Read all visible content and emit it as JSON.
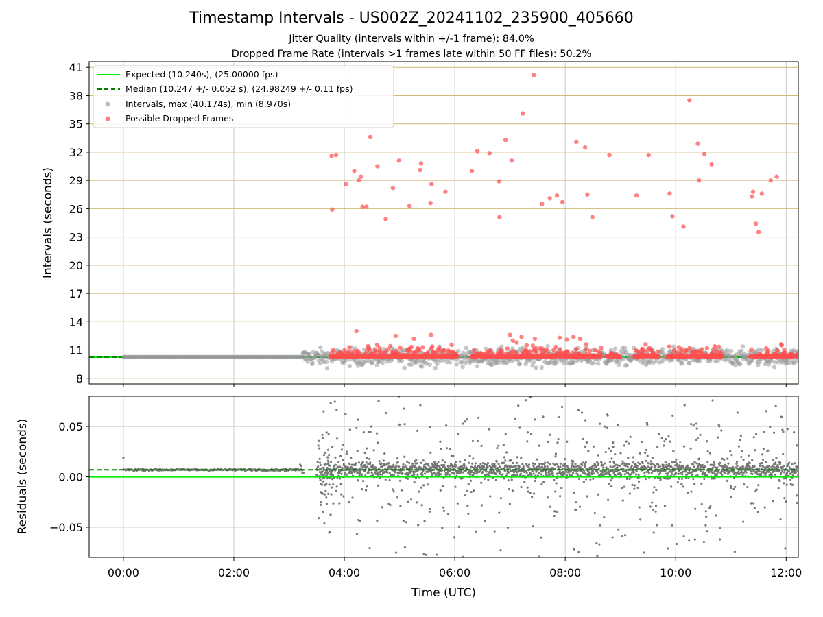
{
  "chart_data": [
    {
      "type": "scatter",
      "title": "Timestamp Intervals - US002Z_20241102_235900_405660",
      "subtitle_lines": [
        "Jitter Quality (intervals within +/-1 frame): 84.0%",
        "Dropped Frame Rate (intervals >1 frames late within 50 FF files): 50.2%"
      ],
      "xlabel": "",
      "ylabel": "Intervals (seconds)",
      "x_unit": "hours (UTC)",
      "xlim": [
        -0.62,
        12.22
      ],
      "ylim": [
        7.4,
        41.6
      ],
      "yticks": [
        8,
        11,
        14,
        17,
        20,
        23,
        26,
        29,
        32,
        35,
        38,
        41
      ],
      "grid": {
        "vertical": true,
        "horizontal": true,
        "horizontal_color": "#d4b872",
        "vertical_color": "#cccccc"
      },
      "legend_position": "top-left",
      "expected_interval": 10.24,
      "median_interval": 10.247,
      "legend": [
        {
          "label": "Expected (10.240s), (25.00000 fps)",
          "style": "solid",
          "color": "#00ee00"
        },
        {
          "label": "Median (10.247 +/- 0.052 s), (24.98249 +/- 0.11 fps)",
          "style": "dashed",
          "color": "#007f00"
        },
        {
          "label": "Intervals, max (40.174s), min (8.970s)",
          "style": "marker",
          "color": "#999999"
        },
        {
          "label": "Possible Dropped Frames",
          "style": "marker",
          "color": "#ff4d4d"
        }
      ],
      "series": [
        {
          "name": "Possible Dropped Frames",
          "color": "#ff4d4d",
          "x": [
            3.77,
            3.78,
            3.85,
            4.03,
            4.18,
            4.26,
            4.3,
            4.33,
            4.4,
            4.47,
            4.6,
            4.75,
            4.88,
            4.99,
            5.18,
            5.37,
            5.39,
            5.56,
            5.58,
            5.83,
            6.31,
            6.41,
            6.63,
            6.81,
            6.8,
            6.92,
            7.03,
            7.23,
            7.43,
            7.58,
            7.72,
            7.85,
            7.95,
            8.2,
            8.36,
            8.4,
            8.49,
            8.8,
            9.29,
            9.51,
            9.89,
            9.94,
            10.14,
            10.25,
            10.4,
            10.42,
            10.52,
            10.65,
            11.38,
            11.4,
            11.45,
            11.5,
            11.56,
            11.72,
            11.83,
            4.22,
            4.93,
            5.26,
            5.42,
            5.57,
            5.96,
            7.0,
            7.05,
            7.12,
            7.21,
            7.3,
            7.45,
            7.79,
            7.9,
            8.03,
            8.15,
            8.27,
            8.38
          ],
          "values": [
            31.6,
            25.9,
            31.7,
            28.6,
            30.0,
            29.0,
            29.4,
            26.2,
            26.2,
            33.6,
            30.5,
            24.9,
            28.2,
            31.1,
            26.3,
            30.1,
            30.8,
            26.6,
            28.6,
            27.8,
            30.0,
            32.1,
            31.9,
            25.1,
            28.9,
            33.3,
            31.1,
            36.1,
            40.17,
            26.5,
            27.1,
            27.4,
            26.7,
            33.1,
            32.5,
            27.5,
            25.1,
            31.7,
            27.4,
            31.7,
            27.6,
            25.2,
            24.1,
            37.5,
            32.9,
            29.0,
            31.8,
            30.7,
            27.3,
            27.8,
            24.4,
            23.5,
            27.6,
            29.0,
            29.4,
            13.0,
            12.5,
            12.2,
            11.3,
            12.6,
            10.8,
            12.6,
            12.0,
            11.8,
            12.4,
            11.5,
            12.2,
            11.0,
            12.3,
            12.1,
            12.4,
            12.2,
            11.6
          ],
          "dense_bands_y_approx": [
            10.2,
            11.6
          ],
          "dense_bands_x_ranges": [
            [
              3.75,
              6.05
            ],
            [
              6.3,
              6.7
            ],
            [
              6.75,
              8.65
            ],
            [
              8.75,
              9.0
            ],
            [
              9.25,
              9.7
            ],
            [
              9.85,
              10.2
            ],
            [
              10.25,
              10.85
            ],
            [
              11.35,
              11.95
            ],
            [
              11.95,
              12.22
            ]
          ]
        },
        {
          "name": "Intervals",
          "color": "#999999",
          "x_range": [
            0.0,
            12.22
          ],
          "typical_value": 10.247,
          "scatter_band_y_approx": [
            8.97,
            11.6
          ],
          "max": 40.174,
          "min": 8.97
        }
      ]
    },
    {
      "type": "scatter",
      "xlabel": "Time (UTC)",
      "ylabel": "Residuals (seconds)",
      "xlim": [
        -0.62,
        12.22
      ],
      "ylim": [
        -0.08,
        0.08
      ],
      "yticks": [
        0.05,
        0.0,
        -0.05
      ],
      "ytick_labels": [
        "0.05",
        "0.00",
        "−0.05"
      ],
      "xticks": [
        0,
        2,
        4,
        6,
        8,
        10,
        12
      ],
      "xtick_labels": [
        "00:00",
        "02:00",
        "04:00",
        "06:00",
        "08:00",
        "10:00",
        "12:00"
      ],
      "grid": {
        "vertical": true,
        "horizontal": true,
        "color": "#cccccc"
      },
      "expected_residual": 0.0,
      "median_residual": 0.007,
      "series": [
        {
          "name": "Residuals",
          "color": "#777777",
          "typical_value": 0.007,
          "stable_segment_x_range": [
            0.0,
            3.25
          ],
          "noisy_segment_x_range": [
            3.25,
            12.22
          ],
          "noisy_band_y_approx": [
            -0.08,
            0.08
          ]
        }
      ]
    }
  ]
}
